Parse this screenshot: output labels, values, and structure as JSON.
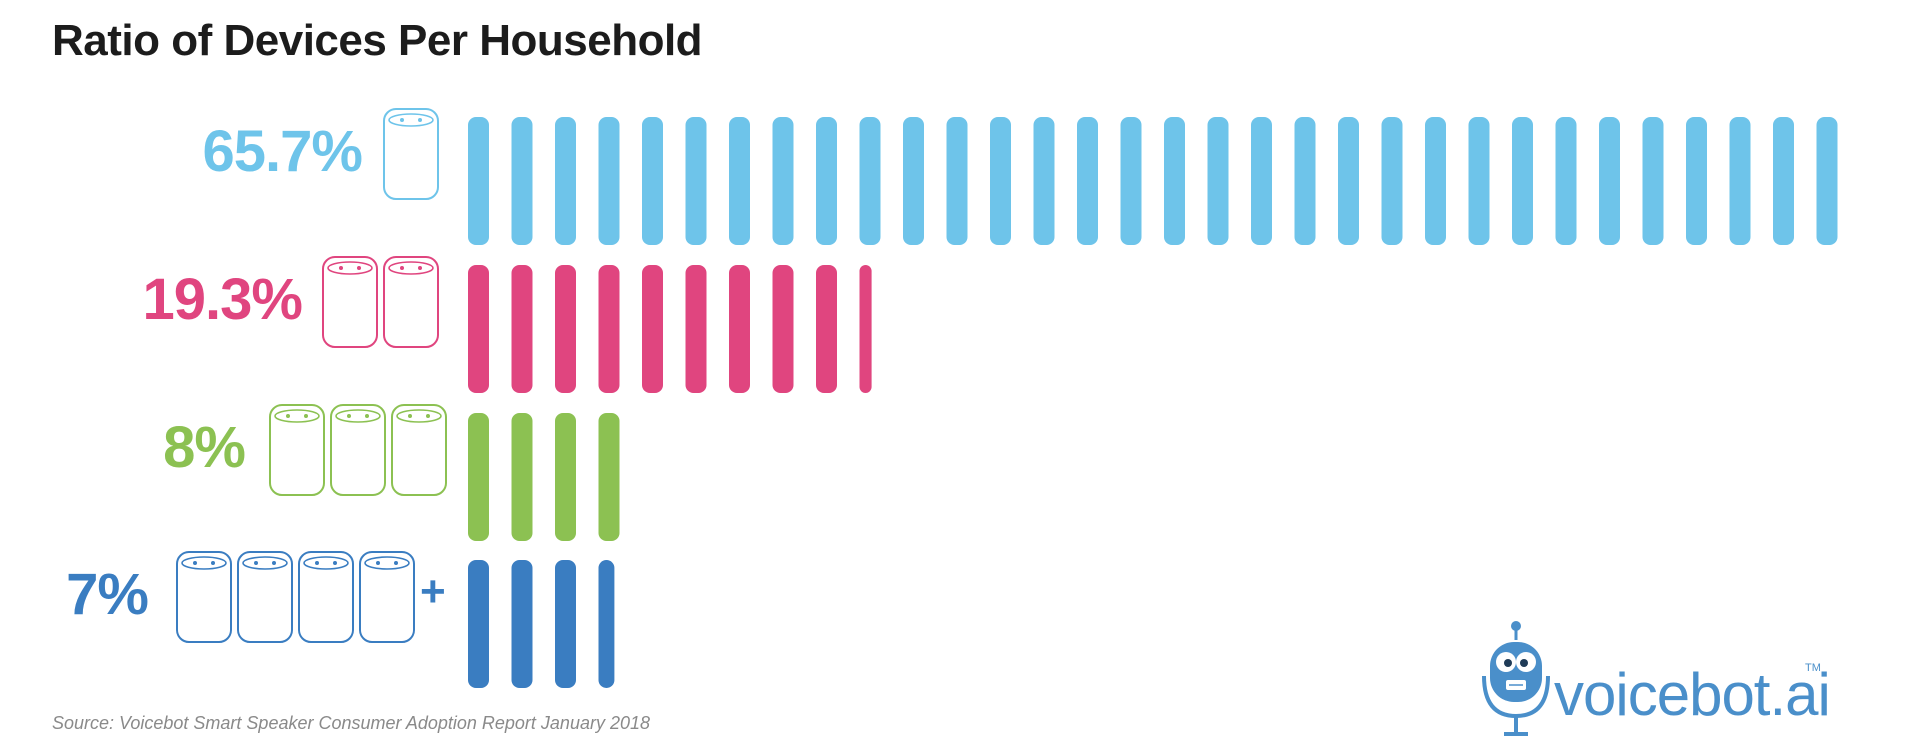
{
  "chart_data": {
    "type": "bar",
    "title": "Ratio of Devices Per Household",
    "categories": [
      "1 device",
      "2 devices",
      "3 devices",
      "4+ devices"
    ],
    "values": [
      65.7,
      19.3,
      8,
      7
    ],
    "value_labels": [
      "65.7%",
      "19.3%",
      "8%",
      "7%"
    ],
    "plus_label": "+",
    "orientation": "horizontal",
    "xlim": [
      0,
      65.7
    ],
    "grid": false,
    "legend": "none",
    "colors": [
      "#6ec4ea",
      "#e0457f",
      "#8cc152",
      "#3a7dc1"
    ]
  },
  "source": "Source: Voicebot Smart Speaker Consumer Adoption Report January 2018",
  "logo": {
    "text": "voicebot.ai",
    "tm": "TM",
    "icon": "robot-microphone-icon",
    "color": "#4a8fca"
  }
}
